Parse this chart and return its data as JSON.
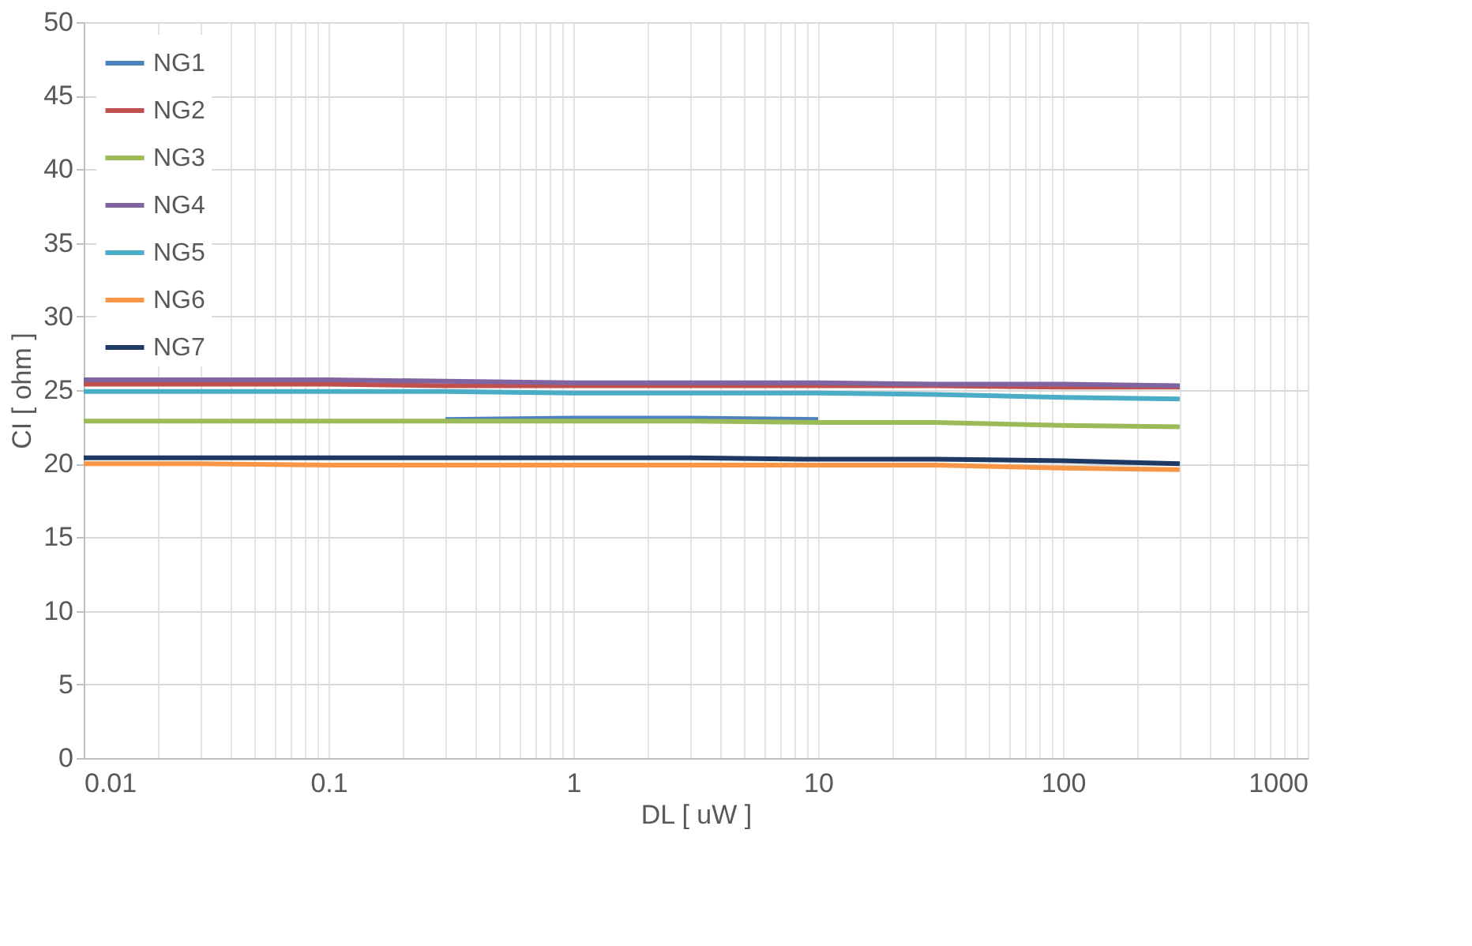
{
  "chart_data": {
    "type": "line",
    "xlabel": "DL [ uW ]",
    "ylabel": "CI [ ohm ]",
    "x": [
      0.01,
      0.03,
      0.1,
      0.3,
      1,
      3,
      10,
      30,
      100,
      300
    ],
    "series": [
      {
        "name": "NG1",
        "color": "#4f81bd",
        "values": [
          null,
          null,
          null,
          23.0,
          23.1,
          23.1,
          23.0,
          null,
          null,
          null
        ]
      },
      {
        "name": "NG2",
        "color": "#c0504d",
        "values": [
          25.4,
          25.4,
          25.4,
          25.3,
          25.3,
          25.3,
          25.3,
          25.3,
          25.2,
          25.2
        ]
      },
      {
        "name": "NG3",
        "color": "#9bbb59",
        "values": [
          22.9,
          22.9,
          22.9,
          22.9,
          22.9,
          22.9,
          22.8,
          22.8,
          22.6,
          22.5
        ]
      },
      {
        "name": "NG4",
        "color": "#8064a2",
        "values": [
          25.7,
          25.7,
          25.7,
          25.6,
          25.5,
          25.5,
          25.5,
          25.4,
          25.4,
          25.3
        ]
      },
      {
        "name": "NG5",
        "color": "#4bacc6",
        "values": [
          24.9,
          24.9,
          24.9,
          24.9,
          24.8,
          24.8,
          24.8,
          24.7,
          24.5,
          24.4
        ]
      },
      {
        "name": "NG6",
        "color": "#f79646",
        "values": [
          20.0,
          20.0,
          19.9,
          19.9,
          19.9,
          19.9,
          19.9,
          19.9,
          19.7,
          19.6
        ]
      },
      {
        "name": "NG7",
        "color": "#1f3864",
        "values": [
          20.4,
          20.4,
          20.4,
          20.4,
          20.4,
          20.4,
          20.3,
          20.3,
          20.2,
          20.0
        ]
      }
    ],
    "xlim": [
      0.01,
      1000
    ],
    "ylim": [
      0,
      50
    ],
    "log": "x",
    "xticks": [
      0.01,
      {
        "value": 0.02,
        "label": null
      },
      {
        "value": 0.03,
        "label": null
      },
      {
        "value": 0.04,
        "label": null
      },
      {
        "value": 0.05,
        "label": null
      },
      {
        "value": 0.06,
        "label": null
      },
      {
        "value": 0.07,
        "label": null
      },
      {
        "value": 0.08,
        "label": null
      },
      {
        "value": 0.09,
        "label": null
      },
      0.1,
      {
        "value": 0.2,
        "label": null
      },
      {
        "value": 0.3,
        "label": null
      },
      {
        "value": 0.4,
        "label": null
      },
      {
        "value": 0.5,
        "label": null
      },
      {
        "value": 0.6,
        "label": null
      },
      {
        "value": 0.7,
        "label": null
      },
      {
        "value": 0.8,
        "label": null
      },
      {
        "value": 0.9,
        "label": null
      },
      1,
      {
        "value": 2,
        "label": null
      },
      {
        "value": 3,
        "label": null
      },
      {
        "value": 4,
        "label": null
      },
      {
        "value": 5,
        "label": null
      },
      {
        "value": 6,
        "label": null
      },
      {
        "value": 7,
        "label": null
      },
      {
        "value": 8,
        "label": null
      },
      {
        "value": 9,
        "label": null
      },
      10,
      {
        "value": 20,
        "label": null
      },
      {
        "value": 30,
        "label": null
      },
      {
        "value": 40,
        "label": null
      },
      {
        "value": 50,
        "label": null
      },
      {
        "value": 60,
        "label": null
      },
      {
        "value": 70,
        "label": null
      },
      {
        "value": 80,
        "label": null
      },
      {
        "value": 90,
        "label": null
      },
      100,
      {
        "value": 200,
        "label": null
      },
      {
        "value": 300,
        "label": null
      },
      {
        "value": 400,
        "label": null
      },
      {
        "value": 500,
        "label": null
      },
      {
        "value": 600,
        "label": null
      },
      {
        "value": 700,
        "label": null
      },
      {
        "value": 800,
        "label": null
      },
      {
        "value": 900,
        "label": null
      },
      1000
    ],
    "yticks": [
      0,
      5,
      10,
      15,
      20,
      25,
      30,
      35,
      40,
      45,
      50
    ],
    "grid": true,
    "legend": "top left",
    "marker": "none",
    "line_style": "solid"
  }
}
